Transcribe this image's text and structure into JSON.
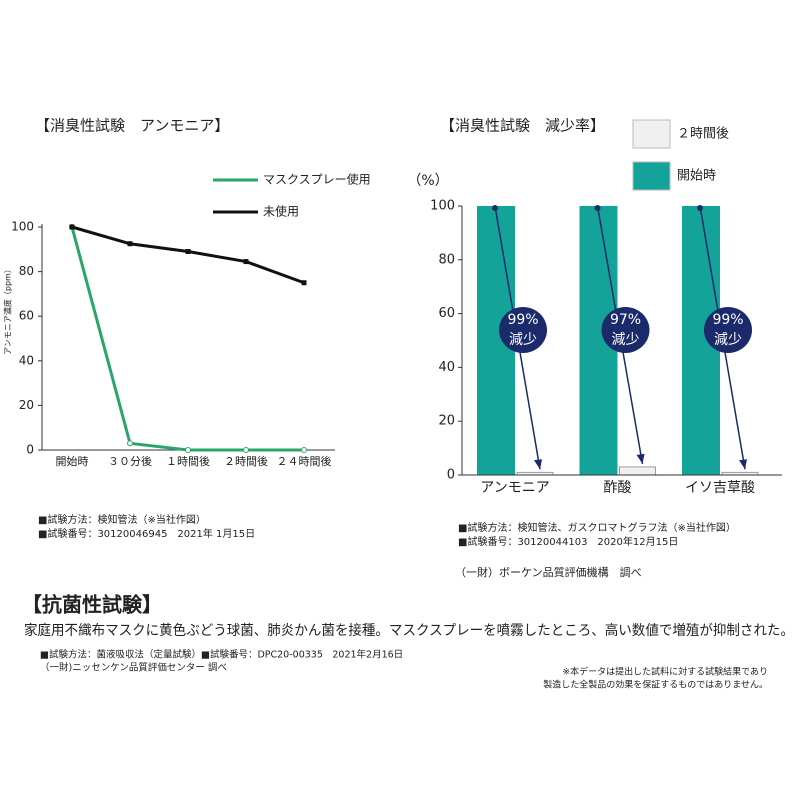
{
  "chart_data": [
    {
      "type": "line",
      "title": "【消臭性試験　アンモニア】",
      "ylabel": "アンモニア濃度（ppm）",
      "categories": [
        "開始時",
        "３０分後",
        "１時間後",
        "２時間後",
        "２４時間後"
      ],
      "series": [
        {
          "name": "マスクスプレー使用",
          "color": "#2aa56a",
          "values": [
            100,
            3,
            0,
            0,
            0
          ]
        },
        {
          "name": "未使用",
          "color": "#111111",
          "values": [
            100,
            92.5,
            89,
            84.5,
            75
          ]
        }
      ],
      "ylim": [
        0,
        100
      ],
      "yticks": [
        0,
        20,
        40,
        60,
        80,
        100
      ],
      "notes": [
        "■試験方法：検知管法（※当社作図）",
        "■試験番号：30120046945　2021年 1月15日"
      ]
    },
    {
      "type": "bar",
      "title": "【消臭性試験　減少率】",
      "ylabel": "（%）",
      "categories": [
        "アンモニア",
        "酢酸",
        "イソ吉草酸"
      ],
      "series": [
        {
          "name": "開始時",
          "color": "#14a398",
          "values": [
            100,
            100,
            100
          ]
        },
        {
          "name": "２時間後",
          "color": "#f0f0f0",
          "values": [
            1,
            3,
            1
          ]
        }
      ],
      "annotations": [
        "99%",
        "97%",
        "99%"
      ],
      "annotation_suffix": "減少",
      "annotation_color": "#1b2a6b",
      "ylim": [
        0,
        100
      ],
      "yticks": [
        0,
        20,
        40,
        60,
        80,
        100
      ],
      "notes": [
        "■試験方法：検知管法、ガスクロマトグラフ法（※当社作図）",
        "■試験番号：30120044103　2020年12月15日",
        "（一財）ボーケン品質評価機構　調べ"
      ]
    }
  ],
  "section": {
    "title": "【抗菌性試験】",
    "body": "家庭用不織布マスクに黄色ぶどう球菌、肺炎かん菌を接種。マスクスプレーを噴霧したところ、高い数値で増殖が抑制された。",
    "notes": [
      "■試験方法：菌液吸収法（定量試験）■試験番号：DPC20-00335　2021年2月16日",
      "（一財)ニッセンケン品質評価センター 調べ"
    ],
    "disclaimer": [
      "※本データは提出した試料に対する試験結果であり",
      "製造した全製品の効果を保証するものではありません。"
    ]
  }
}
